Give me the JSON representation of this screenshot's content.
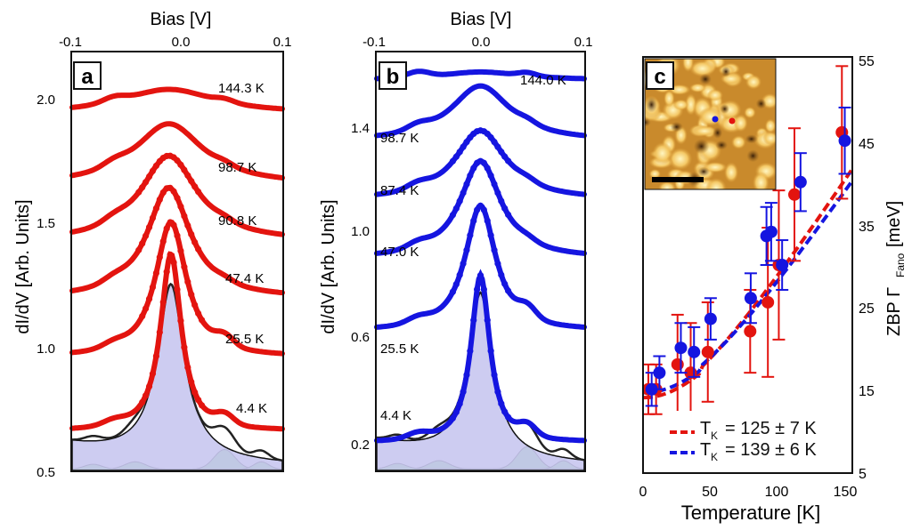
{
  "colors": {
    "red": "#e3140f",
    "blue": "#1515e0",
    "fill_lavender": "#c8c6f0",
    "fill_green": "#66d466",
    "frame": "#111111"
  },
  "panel_a": {
    "letter": "a",
    "xlabel_top": "Bias [V]",
    "ylabel": "dI/dV [Arb. Units]",
    "x_ticks": [
      "-0.1",
      "0.0",
      "0.1"
    ],
    "y_ticks": [
      "0.5",
      "1.0",
      "1.5",
      "2.0"
    ],
    "temp_labels": [
      "144.3 K",
      "98.7 K",
      "90.8 K",
      "47.4 K",
      "25.5 K",
      "4.4 K"
    ]
  },
  "panel_b": {
    "letter": "b",
    "xlabel_top": "Bias [V]",
    "ylabel": "dI/dV [Arb. Units]",
    "x_ticks": [
      "-0.1",
      "0.0",
      "0.1"
    ],
    "y_ticks": [
      "0.2",
      "0.6",
      "1.0",
      "1.4"
    ],
    "temp_labels": [
      "144.0 K",
      "98.7 K",
      "87.4 K",
      "47.0 K",
      "25.5 K",
      "4.4 K"
    ]
  },
  "panel_c": {
    "letter": "c",
    "xlabel": "Temperature [K]",
    "ylabel_main": "ZBP Γ",
    "ylabel_sub": "Fano",
    "ylabel_unit": "[meV]",
    "x_ticks": [
      "0",
      "50",
      "100",
      "150"
    ],
    "y_ticks": [
      "5",
      "15",
      "25",
      "35",
      "45",
      "55"
    ],
    "legend": [
      {
        "prefix": "T",
        "sub": "K",
        "text": "= 125 ± 7 K",
        "color": "#e3140f"
      },
      {
        "prefix": "T",
        "sub": "K",
        "text": "= 139 ± 6 K",
        "color": "#1515e0"
      }
    ]
  },
  "chart_data": [
    {
      "type": "line",
      "panel": "a",
      "title": "",
      "xlabel": "Bias [V]",
      "ylabel": "dI/dV [Arb. Units]",
      "xlim": [
        -0.1,
        0.1
      ],
      "ylim": [
        0.5,
        2.2
      ],
      "series": [
        {
          "name": "144.3 K",
          "offset": 1.95,
          "peak": 0.1,
          "width": 0.055,
          "pos": -0.008
        },
        {
          "name": "98.7 K",
          "offset": 1.66,
          "peak": 0.25,
          "width": 0.04,
          "pos": -0.008
        },
        {
          "name": "90.8 K",
          "offset": 1.43,
          "peak": 0.35,
          "width": 0.033,
          "pos": -0.008
        },
        {
          "name": "47.4 K",
          "offset": 1.2,
          "peak": 0.45,
          "width": 0.025,
          "pos": -0.008
        },
        {
          "name": "25.5 K",
          "offset": 0.96,
          "peak": 0.55,
          "width": 0.018,
          "pos": -0.006
        },
        {
          "name": "4.4 K",
          "offset": 0.66,
          "peak": 0.72,
          "width": 0.012,
          "pos": -0.006
        }
      ]
    },
    {
      "type": "line",
      "panel": "b",
      "title": "",
      "xlabel": "Bias [V]",
      "ylabel": "dI/dV [Arb. Units]",
      "xlim": [
        -0.1,
        0.1
      ],
      "ylim": [
        0.1,
        1.6
      ],
      "series": [
        {
          "name": "144.0 K",
          "offset": 1.5,
          "peak": 0.03,
          "width": 0.05,
          "pos": 0.0
        },
        {
          "name": "98.7 K",
          "offset": 1.28,
          "peak": 0.2,
          "width": 0.035,
          "pos": 0.0
        },
        {
          "name": "87.4 K",
          "offset": 1.07,
          "peak": 0.25,
          "width": 0.03,
          "pos": 0.0
        },
        {
          "name": "47.0 K",
          "offset": 0.86,
          "peak": 0.35,
          "width": 0.024,
          "pos": 0.0
        },
        {
          "name": "25.5 K",
          "offset": 0.6,
          "peak": 0.45,
          "width": 0.018,
          "pos": 0.0
        },
        {
          "name": "4.4 K",
          "offset": 0.2,
          "peak": 0.6,
          "width": 0.011,
          "pos": 0.0
        }
      ]
    },
    {
      "type": "scatter",
      "panel": "c",
      "title": "",
      "xlabel": "Temperature [K]",
      "ylabel": "ZBP Γ Fano [meV]",
      "xlim": [
        0,
        150
      ],
      "ylim": [
        5,
        55
      ],
      "series": [
        {
          "name": "T_K = 125 ± 7 K",
          "color": "#e3140f",
          "x": [
            4.4,
            10,
            25.5,
            35,
            47.4,
            78,
            90.8,
            98.7,
            110,
            144.3
          ],
          "y": [
            15,
            15,
            18,
            17,
            19.5,
            22,
            25.5,
            30,
            38.5,
            46
          ],
          "err": [
            3,
            3,
            6,
            6,
            6,
            5,
            9,
            9,
            8,
            8
          ]
        },
        {
          "name": "T_K = 139 ± 6 K",
          "color": "#1515e0",
          "x": [
            4.4,
            10,
            25.5,
            35,
            47.0,
            76,
            87.4,
            90.8,
            98.7,
            112,
            144.0
          ],
          "y": [
            15,
            17,
            20,
            19.5,
            23.5,
            26,
            33.5,
            34,
            30,
            40,
            45
          ],
          "err": [
            2,
            2,
            3,
            3,
            2.5,
            3,
            3.5,
            3.5,
            3,
            3.5,
            4
          ]
        }
      ],
      "fits": [
        {
          "name": "T_K = 125 ± 7 K",
          "color": "#e3140f",
          "x": [
            0,
            150
          ],
          "curve": "sqrt",
          "gamma0": 14,
          "tk": 125
        },
        {
          "name": "T_K = 139 ± 6 K",
          "color": "#1515e0",
          "x": [
            0,
            150
          ],
          "curve": "sqrt",
          "gamma0": 14.6,
          "tk": 139
        }
      ]
    }
  ]
}
